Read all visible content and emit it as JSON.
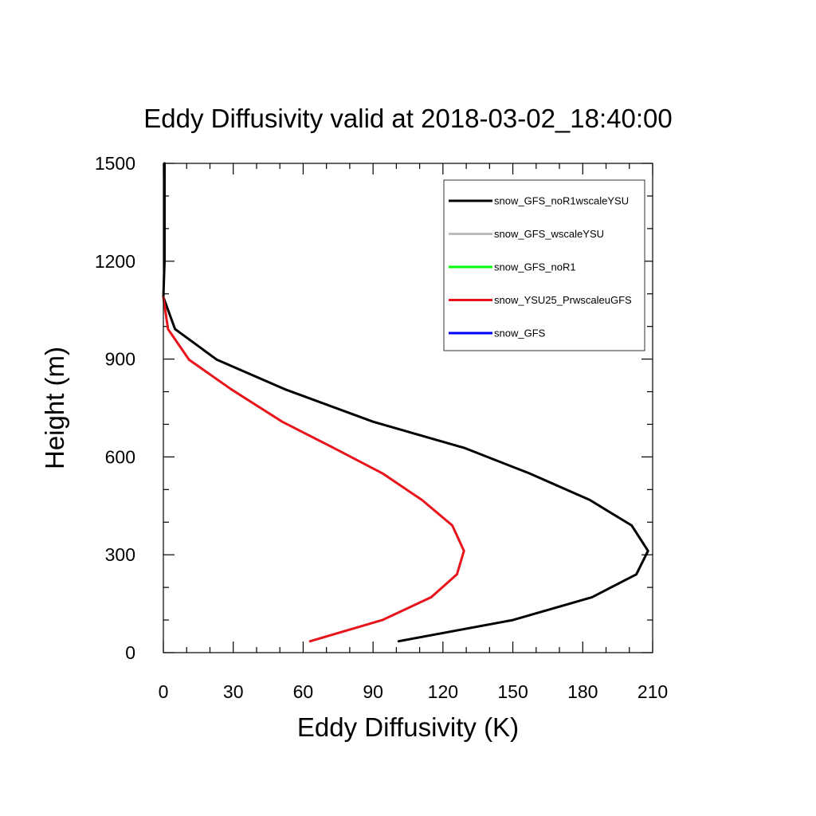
{
  "chart_data": {
    "type": "line",
    "title": "Eddy Diffusivity valid at 2018-03-02_18:40:00",
    "xlabel": "Eddy Diffusivity (K)",
    "ylabel": "Height (m)",
    "xlim": [
      0,
      210
    ],
    "ylim": [
      0,
      1500
    ],
    "x_ticks": [
      0,
      30,
      60,
      90,
      120,
      150,
      180,
      210
    ],
    "y_ticks": [
      0,
      300,
      600,
      900,
      1200,
      1500
    ],
    "legend_position": "top-right",
    "series": [
      {
        "name": "snow_GFS_noR1wscaleYSU",
        "color": "#000000",
        "points": [
          [
            101,
            35
          ],
          [
            150,
            100
          ],
          [
            184,
            170
          ],
          [
            203,
            240
          ],
          [
            208,
            312
          ],
          [
            201,
            390
          ],
          [
            183,
            468
          ],
          [
            157,
            550
          ],
          [
            129,
            628
          ],
          [
            90,
            708
          ],
          [
            52,
            808
          ],
          [
            23,
            898
          ],
          [
            5,
            992
          ],
          [
            0,
            1090
          ],
          [
            0.5,
            1200
          ],
          [
            0.5,
            1300
          ],
          [
            0.5,
            1400
          ],
          [
            0.5,
            1500
          ]
        ]
      },
      {
        "name": "snow_GFS_wscaleYSU",
        "color": "#bbbbbb",
        "points": []
      },
      {
        "name": "snow_GFS_noR1",
        "color": "#00ff00",
        "points": []
      },
      {
        "name": "snow_YSU25_PrwscaleuGFS",
        "color": "#e8141b",
        "points": [
          [
            63,
            35
          ],
          [
            94,
            100
          ],
          [
            115,
            170
          ],
          [
            126,
            240
          ],
          [
            129,
            312
          ],
          [
            124,
            390
          ],
          [
            111,
            468
          ],
          [
            94,
            550
          ],
          [
            73,
            628
          ],
          [
            51,
            708
          ],
          [
            29,
            808
          ],
          [
            11,
            898
          ],
          [
            2,
            992
          ],
          [
            0,
            1090
          ]
        ]
      },
      {
        "name": "snow_GFS",
        "color": "#0000ff",
        "points": []
      }
    ]
  }
}
